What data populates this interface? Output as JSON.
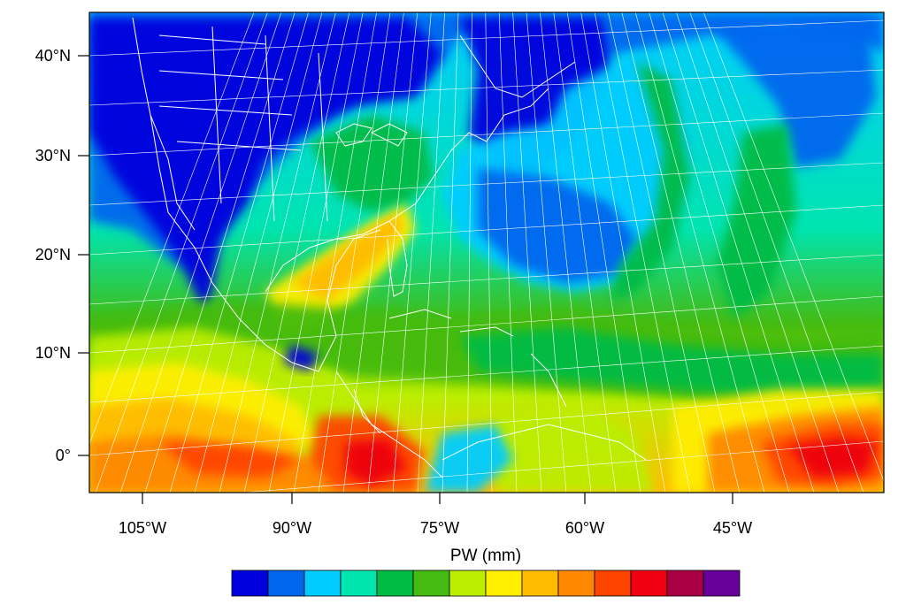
{
  "map": {
    "latitude_labels": [
      "40°N",
      "30°N",
      "20°N",
      "10°N",
      "0°"
    ],
    "longitude_labels": [
      "105°W",
      "90°W",
      "75°W",
      "60°W",
      "45°W"
    ]
  },
  "colorbar": {
    "title": "PW  (mm)",
    "colors": [
      "#0000dd",
      "#0066ee",
      "#00ccff",
      "#00e4b0",
      "#00bb44",
      "#44bb11",
      "#bbee00",
      "#ffee00",
      "#ffbb00",
      "#ff8800",
      "#ff4400",
      "#ee0011",
      "#aa0044",
      "#660099"
    ]
  },
  "palette": {
    "land_outline": "#ffffff",
    "graticule": "#ffffff"
  }
}
